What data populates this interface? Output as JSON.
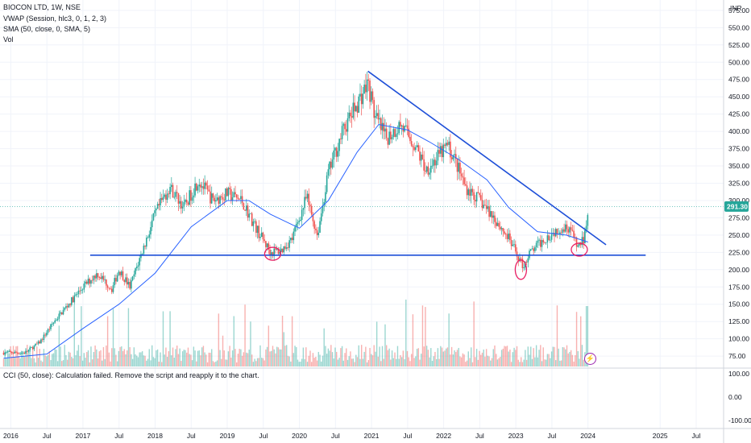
{
  "header": {
    "symbol": "BIOCON LTD, 1W, NSE",
    "indicators": [
      "VWAP (Session, hlc3, 0, 1, 2, 3)",
      "SMA (50, close, 0, SMA, 5)",
      "Vol"
    ]
  },
  "price_axis": {
    "currency": "INR",
    "last_price": "291.30",
    "last_price_value": 291.3
  },
  "cci_panel": {
    "message": "CCI (50, close): Calculation failed. Remove the script and reapply it to the chart.",
    "ticks": [
      "100.00",
      "0.00",
      "-100.00"
    ]
  },
  "colors": {
    "up": "#26a69a",
    "down": "#ef5350",
    "sma": "#2962ff",
    "trendline": "#1e4fd8",
    "marker": "#e91e63",
    "grid": "#f0f3fa",
    "last_price_bg": "#26a69a"
  },
  "chart_data": {
    "type": "candlestick",
    "title": "BIOCON LTD, 1W, NSE",
    "x_ticks": [
      "2016",
      "Jul",
      "2017",
      "Jul",
      "2018",
      "Jul",
      "2019",
      "Jul",
      "2020",
      "Jul",
      "2021",
      "Jul",
      "2022",
      "Jul",
      "2023",
      "Jul",
      "2024",
      "2025",
      "Jul"
    ],
    "x_tick_years": [
      2016,
      2016.5,
      2017,
      2017.5,
      2018,
      2018.5,
      2019,
      2019.5,
      2020,
      2020.5,
      2021,
      2021.5,
      2022,
      2022.5,
      2023,
      2023.5,
      2024,
      2025,
      2025.5
    ],
    "y_ticks": [
      75,
      100,
      125,
      150,
      175,
      200,
      225,
      250,
      275,
      300,
      325,
      350,
      375,
      400,
      425,
      450,
      475,
      500,
      525,
      550,
      575
    ],
    "ylim": [
      60,
      590
    ],
    "xlim": [
      2015.85,
      2025.88
    ],
    "price_path": [
      [
        2015.9,
        80
      ],
      [
        2016.2,
        80
      ],
      [
        2016.4,
        95
      ],
      [
        2016.6,
        125
      ],
      [
        2016.8,
        150
      ],
      [
        2017.0,
        175
      ],
      [
        2017.2,
        195
      ],
      [
        2017.4,
        172
      ],
      [
        2017.5,
        200
      ],
      [
        2017.65,
        175
      ],
      [
        2017.8,
        220
      ],
      [
        2018.0,
        280
      ],
      [
        2018.2,
        320
      ],
      [
        2018.4,
        290
      ],
      [
        2018.6,
        330
      ],
      [
        2018.8,
        300
      ],
      [
        2019.0,
        310
      ],
      [
        2019.2,
        300
      ],
      [
        2019.4,
        260
      ],
      [
        2019.6,
        225
      ],
      [
        2019.75,
        228
      ],
      [
        2019.9,
        245
      ],
      [
        2020.1,
        305
      ],
      [
        2020.25,
        250
      ],
      [
        2020.4,
        340
      ],
      [
        2020.6,
        400
      ],
      [
        2020.8,
        440
      ],
      [
        2020.95,
        470
      ],
      [
        2021.05,
        420
      ],
      [
        2021.2,
        390
      ],
      [
        2021.4,
        410
      ],
      [
        2021.6,
        380
      ],
      [
        2021.75,
        345
      ],
      [
        2021.9,
        360
      ],
      [
        2022.05,
        380
      ],
      [
        2022.15,
        360
      ],
      [
        2022.3,
        320
      ],
      [
        2022.5,
        300
      ],
      [
        2022.7,
        275
      ],
      [
        2022.9,
        245
      ],
      [
        2023.1,
        205
      ],
      [
        2023.2,
        225
      ],
      [
        2023.4,
        245
      ],
      [
        2023.6,
        260
      ],
      [
        2023.75,
        262
      ],
      [
        2023.85,
        232
      ],
      [
        2023.95,
        245
      ],
      [
        2024.0,
        291
      ]
    ],
    "sma_50": [
      [
        2015.9,
        72
      ],
      [
        2016.5,
        78
      ],
      [
        2017.0,
        115
      ],
      [
        2017.5,
        150
      ],
      [
        2018.0,
        195
      ],
      [
        2018.5,
        262
      ],
      [
        2019.0,
        300
      ],
      [
        2019.3,
        300
      ],
      [
        2019.6,
        280
      ],
      [
        2020.0,
        260
      ],
      [
        2020.4,
        300
      ],
      [
        2020.8,
        370
      ],
      [
        2021.1,
        410
      ],
      [
        2021.5,
        402
      ],
      [
        2021.8,
        385
      ],
      [
        2022.2,
        360
      ],
      [
        2022.6,
        330
      ],
      [
        2022.9,
        290
      ],
      [
        2023.3,
        255
      ],
      [
        2023.7,
        250
      ],
      [
        2024.0,
        240
      ]
    ],
    "annotations": [
      {
        "type": "trendline",
        "from": [
          2020.95,
          487
        ],
        "to": [
          2024.25,
          236
        ]
      },
      {
        "type": "horizontal",
        "from": [
          2017.1,
          221
        ],
        "to": [
          2024.8,
          221
        ]
      },
      {
        "type": "ellipse",
        "x": 2019.63,
        "y": 223
      },
      {
        "type": "ellipse",
        "x": 2023.07,
        "y": 200
      },
      {
        "type": "ellipse",
        "x": 2023.88,
        "y": 229
      }
    ]
  }
}
